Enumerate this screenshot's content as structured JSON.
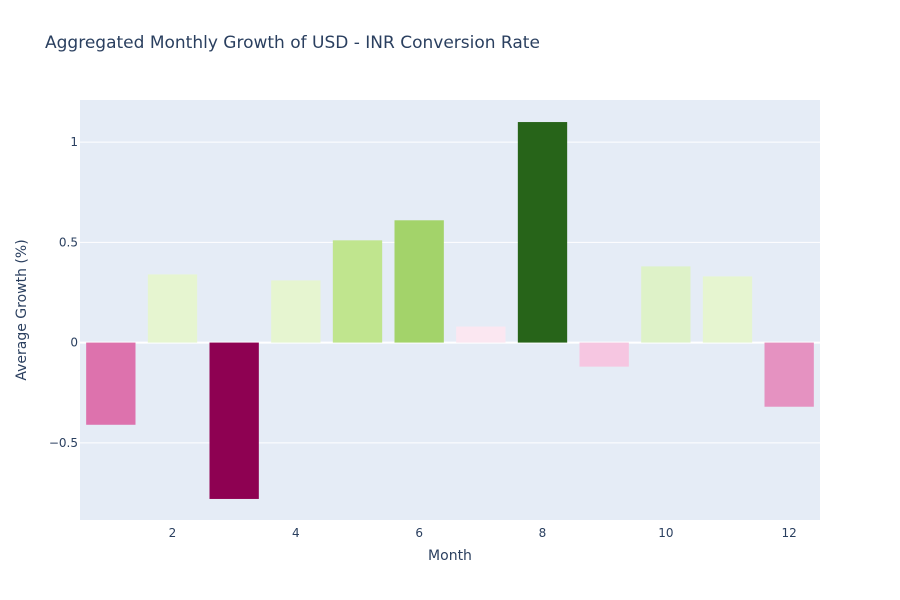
{
  "chart_data": {
    "type": "bar",
    "title": "Aggregated Monthly Growth of USD - INR Conversion Rate",
    "xlabel": "Month",
    "ylabel": "Average Growth (%)",
    "x": [
      1,
      2,
      3,
      4,
      5,
      6,
      7,
      8,
      9,
      10,
      11,
      12
    ],
    "values": [
      -0.41,
      0.34,
      -0.78,
      0.31,
      0.51,
      0.61,
      0.08,
      1.1,
      -0.12,
      0.38,
      0.33,
      -0.32
    ],
    "colors": [
      "#dd72ad",
      "#e6f5d0",
      "#8e0152",
      "#e6f5d0",
      "#c0e58e",
      "#a3d36a",
      "#fbe7f1",
      "#276419",
      "#f6c6e1",
      "#def2c8",
      "#e6f5d0",
      "#e592c1"
    ],
    "xlim": [
      0.5,
      12.5
    ],
    "ylim": [
      -0.885,
      1.21
    ],
    "xticks": [
      2,
      4,
      6,
      8,
      10,
      12
    ],
    "xtick_labels": [
      "2",
      "4",
      "6",
      "8",
      "10",
      "12"
    ],
    "yticks": [
      -0.5,
      0,
      0.5,
      1
    ],
    "ytick_labels": [
      "−0.5",
      "0",
      "0.5",
      "1"
    ],
    "grid": true,
    "background": "#e5ecf6"
  }
}
